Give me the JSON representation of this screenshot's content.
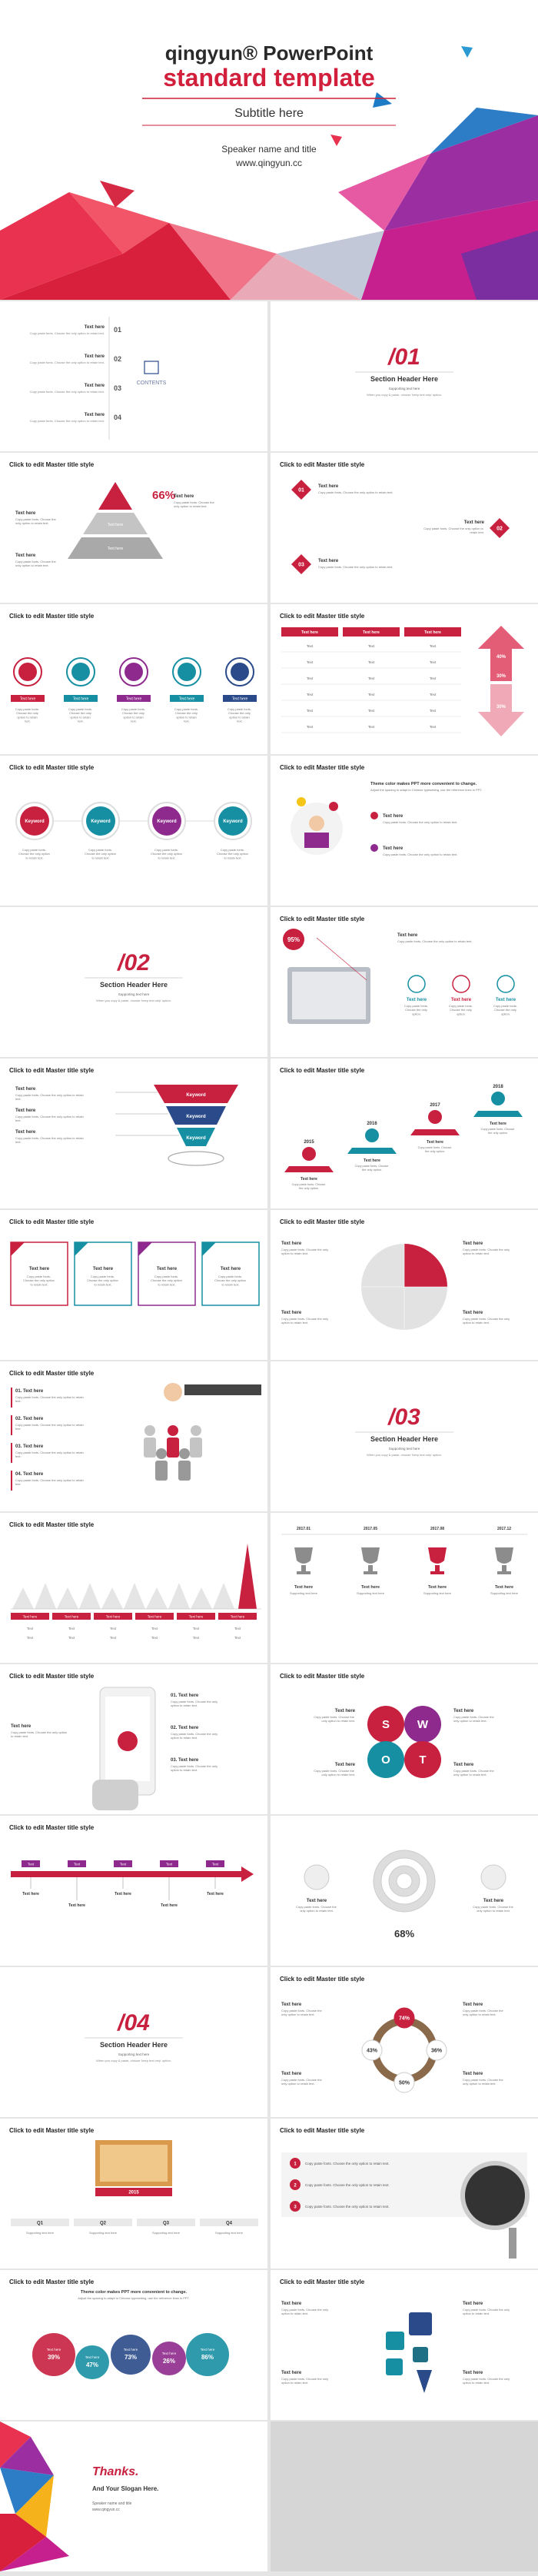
{
  "cover": {
    "title_line1": "qingyun® PowerPoint",
    "title_line2": "standard template",
    "subtitle": "Subtitle here",
    "speaker": "Speaker name and title",
    "website": "www.qingyun.cc"
  },
  "slides": [
    {
      "label": "CONTENTS",
      "items": [
        {
          "num": "01",
          "title": "Text here",
          "desc": "Copy paste fonts. Choose the only option to retain text."
        },
        {
          "num": "02",
          "title": "Text here",
          "desc": "Copy paste fonts. Choose the only option to retain text."
        },
        {
          "num": "03",
          "title": "Text here",
          "desc": "Copy paste fonts. Choose the only option to retain text."
        },
        {
          "num": "04",
          "title": "Text here",
          "desc": "Copy paste fonts. Choose the only option to retain text."
        }
      ]
    },
    {
      "number": "/01",
      "header": "Section Header Here",
      "sub": "Supporting text here",
      "desc": "When you copy & paste, choose 'keep text only' option."
    },
    {
      "title": "Click to edit Master title style",
      "percent": "66%",
      "levels": [
        "Text here",
        "Text here"
      ],
      "notes": [
        {
          "title": "Text here",
          "desc": "Copy paste fonts. Choose the only option to retain text."
        },
        {
          "title": "Text here",
          "desc": "Copy paste fonts. Choose the only option to retain text."
        },
        {
          "title": "Text here",
          "desc": "Copy paste fonts. Choose the only option to retain text."
        }
      ]
    },
    {
      "title": "Click to edit Master title style",
      "items": [
        {
          "num": "01",
          "title": "Text here",
          "desc": "Copy paste fonts. Choose the only option to retain text."
        },
        {
          "num": "02",
          "title": "Text here",
          "desc": "Copy paste fonts. Choose the only option to retain text."
        },
        {
          "num": "03",
          "title": "Text here",
          "desc": "Copy paste fonts. Choose the only option to retain text."
        }
      ]
    },
    {
      "title": "Click to edit Master title style",
      "items": [
        {
          "label": "Text here",
          "desc": "Copy paste fonts. Choose the only option to retain text."
        },
        {
          "label": "Text here",
          "desc": "Copy paste fonts. Choose the only option to retain text."
        },
        {
          "label": "Text here",
          "desc": "Copy paste fonts. Choose the only option to retain text."
        },
        {
          "label": "Text here",
          "desc": "Copy paste fonts. Choose the only option to retain text."
        },
        {
          "label": "Text here",
          "desc": "Copy paste fonts. Choose the only option to retain text."
        }
      ]
    },
    {
      "title": "Click to edit Master title style",
      "header": [
        "Text here",
        "Text here",
        "Text here"
      ],
      "rows": [
        [
          "Text",
          "Text",
          "Text"
        ],
        [
          "Text",
          "Text",
          "Text"
        ],
        [
          "Text",
          "Text",
          "Text"
        ],
        [
          "Text",
          "Text",
          "Text"
        ],
        [
          "Text",
          "Text",
          "Text"
        ],
        [
          "Text",
          "Text",
          "Text"
        ]
      ],
      "percents": [
        "40%",
        "30%",
        "30%"
      ]
    },
    {
      "title": "Click to edit Master title style",
      "items": [
        {
          "label": "Keyword",
          "desc": "Copy paste fonts. Choose the only option to retain text."
        },
        {
          "label": "Keyword",
          "desc": "Copy paste fonts. Choose the only option to retain text."
        },
        {
          "label": "Keyword",
          "desc": "Copy paste fonts. Choose the only option to retain text."
        },
        {
          "label": "Keyword",
          "desc": "Copy paste fonts. Choose the only option to retain text."
        }
      ]
    },
    {
      "title": "Click to edit Master title style",
      "heading": "Theme color makes PPT more convenient to change.",
      "sub": "Adjust the spacing to adapt to Chinese typesetting, use the reference lines in PPT.",
      "items": [
        {
          "title": "Text here",
          "desc": "Copy paste fonts. Choose the only option to retain text."
        },
        {
          "title": "Text here",
          "desc": "Copy paste fonts. Choose the only option to retain text."
        }
      ]
    },
    {
      "number": "/02",
      "header": "Section Header Here",
      "sub": "Supporting text here",
      "desc": "When you copy & paste, choose 'keep text only' option."
    },
    {
      "title": "Click to edit Master title style",
      "percent": "95%",
      "main": {
        "title": "Text here",
        "desc": "Copy paste fonts. Choose the only option to retain text."
      },
      "items": [
        {
          "title": "Text here",
          "desc": "Copy paste fonts. Choose the only option."
        },
        {
          "title": "Text here",
          "desc": "Copy paste fonts. Choose the only option."
        },
        {
          "title": "Text here",
          "desc": "Copy paste fonts. Choose the only option."
        }
      ]
    },
    {
      "title": "Click to edit Master title style",
      "items": [
        {
          "label": "Keyword",
          "title": "Text here",
          "desc": "Copy paste fonts. Choose the only option to retain text."
        },
        {
          "label": "Keyword",
          "title": "Text here",
          "desc": "Copy paste fonts. Choose the only option to retain text."
        },
        {
          "label": "Keyword",
          "title": "Text here",
          "desc": "Copy paste fonts. Choose the only option to retain text."
        }
      ]
    },
    {
      "title": "Click to edit Master title style",
      "items": [
        {
          "year": "2015",
          "title": "Text here",
          "desc": "Copy paste fonts. Choose the only option."
        },
        {
          "year": "2016",
          "title": "Text here",
          "desc": "Copy paste fonts. Choose the only option."
        },
        {
          "year": "2017",
          "title": "Text here",
          "desc": "Copy paste fonts. Choose the only option."
        },
        {
          "year": "2018",
          "title": "Text here",
          "desc": "Copy paste fonts. Choose the only option."
        }
      ]
    },
    {
      "title": "Click to edit Master title style",
      "items": [
        {
          "title": "Text here",
          "desc": "Copy paste fonts. Choose the only option to retain text."
        },
        {
          "title": "Text here",
          "desc": "Copy paste fonts. Choose the only option to retain text."
        },
        {
          "title": "Text here",
          "desc": "Copy paste fonts. Choose the only option to retain text."
        },
        {
          "title": "Text here",
          "desc": "Copy paste fonts. Choose the only option to retain text."
        }
      ]
    },
    {
      "title": "Click to edit Master title style",
      "items": [
        {
          "title": "Text here",
          "desc": "Copy paste fonts. Choose the only option to retain text."
        },
        {
          "title": "Text here",
          "desc": "Copy paste fonts. Choose the only option to retain text."
        },
        {
          "title": "Text here",
          "desc": "Copy paste fonts. Choose the only option to retain text."
        },
        {
          "title": "Text here",
          "desc": "Copy paste fonts. Choose the only option to retain text."
        }
      ]
    },
    {
      "title": "Click to edit Master title style",
      "items": [
        {
          "title": "01. Text here",
          "desc": "Copy paste fonts. Choose the only option to retain text."
        },
        {
          "title": "02. Text here",
          "desc": "Copy paste fonts. Choose the only option to retain text."
        },
        {
          "title": "03. Text here",
          "desc": "Copy paste fonts. Choose the only option to retain text."
        },
        {
          "title": "04. Text here",
          "desc": "Copy paste fonts. Choose the only option to retain text."
        }
      ]
    },
    {
      "number": "/03",
      "header": "Section Header Here",
      "sub": "Supporting text here",
      "desc": "When you copy & paste, choose 'keep text only' option."
    },
    {
      "title": "Click to edit Master title style",
      "labels": [
        "Text here",
        "Text here",
        "Text here",
        "Text here",
        "Text here",
        "Text here"
      ],
      "rows": [
        [
          "Text",
          "Text",
          "Text",
          "Text",
          "Text",
          "Text"
        ],
        [
          "Text",
          "Text",
          "Text",
          "Text",
          "Text",
          "Text"
        ]
      ]
    },
    {
      "items": [
        {
          "date": "2017.01",
          "title": "Text here",
          "desc": "Supporting text here"
        },
        {
          "date": "2017.05",
          "title": "Text here",
          "desc": "Supporting text here"
        },
        {
          "date": "2017.08",
          "title": "Text here",
          "desc": "Supporting text here"
        },
        {
          "date": "2017.12",
          "title": "Text here",
          "desc": "Supporting text here"
        }
      ]
    },
    {
      "title": "Click to edit Master title style",
      "main": {
        "title": "Text here",
        "desc": "Copy paste fonts. Choose the only option to retain text."
      },
      "items": [
        {
          "title": "01. Text here",
          "desc": "Copy paste fonts. Choose the only option to retain text."
        },
        {
          "title": "02. Text here",
          "desc": "Copy paste fonts. Choose the only option to retain text."
        },
        {
          "title": "03. Text here",
          "desc": "Copy paste fonts. Choose the only option to retain text."
        }
      ]
    },
    {
      "title": "Click to edit Master title style",
      "letters": [
        "S",
        "W",
        "O",
        "T"
      ],
      "items": [
        {
          "title": "Text here",
          "desc": "Copy paste fonts. Choose the only option to retain text."
        },
        {
          "title": "Text here",
          "desc": "Copy paste fonts. Choose the only option to retain text."
        },
        {
          "title": "Text here",
          "desc": "Copy paste fonts. Choose the only option to retain text."
        },
        {
          "title": "Text here",
          "desc": "Copy paste fonts. Choose the only option to retain text."
        }
      ]
    },
    {
      "title": "Click to edit Master title style",
      "items": [
        {
          "tag": "Text",
          "title": "Text here"
        },
        {
          "tag": "Text",
          "title": "Text here"
        },
        {
          "tag": "Text",
          "title": "Text here"
        },
        {
          "tag": "Text",
          "title": "Text here"
        },
        {
          "tag": "Text",
          "title": "Text here"
        }
      ]
    },
    {
      "percent": "68%",
      "items": [
        {
          "title": "Text here",
          "desc": "Copy paste fonts. Choose the only option to retain text."
        },
        {
          "title": "Text here",
          "desc": "Copy paste fonts. Choose the only option to retain text."
        }
      ]
    },
    {
      "number": "/04",
      "header": "Section Header Here",
      "sub": "Supporting text here",
      "desc": "When you copy & paste, choose 'keep text only' option."
    },
    {
      "title": "Click to edit Master title style",
      "percents": [
        "74%",
        "43%",
        "36%",
        "50%"
      ],
      "items": [
        {
          "title": "Text here",
          "desc": "Copy paste fonts. Choose the only option to retain text."
        },
        {
          "title": "Text here",
          "desc": "Copy paste fonts. Choose the only option to retain text."
        },
        {
          "title": "Text here",
          "desc": "Copy paste fonts. Choose the only option to retain text."
        },
        {
          "title": "Text here",
          "desc": "Copy paste fonts. Choose the only option to retain text."
        }
      ]
    },
    {
      "title": "Click to edit Master title style",
      "year": "2015",
      "quarters": [
        {
          "label": "Q1",
          "desc": "Supporting text here"
        },
        {
          "label": "Q2",
          "desc": "Supporting text here"
        },
        {
          "label": "Q3",
          "desc": "Supporting text here"
        },
        {
          "label": "Q4",
          "desc": "Supporting text here"
        }
      ]
    },
    {
      "title": "Click to edit Master title style",
      "items": [
        {
          "num": "1",
          "desc": "Copy paste fonts. Choose the only option to retain text."
        },
        {
          "num": "2",
          "desc": "Copy paste fonts. Choose the only option to retain text."
        },
        {
          "num": "3",
          "desc": "Copy paste fonts. Choose the only option to retain text."
        }
      ]
    },
    {
      "title": "Click to edit Master title style",
      "heading": "Theme color makes PPT more convenient to change.",
      "sub": "Adjust the spacing to adapt to Chinese typesetting, use the reference lines in PPT.",
      "circles": [
        {
          "label": "Text here",
          "percent": "39%"
        },
        {
          "label": "Text here",
          "percent": "47%"
        },
        {
          "label": "Text here",
          "percent": "73%"
        },
        {
          "label": "Text here",
          "percent": "26%"
        },
        {
          "label": "Text here",
          "percent": "86%"
        }
      ]
    },
    {
      "title": "Click to edit Master title style",
      "items": [
        {
          "title": "Text here",
          "desc": "Copy paste fonts. Choose the only option to retain text."
        },
        {
          "title": "Text here",
          "desc": "Copy paste fonts. Choose the only option to retain text."
        },
        {
          "title": "Text here",
          "desc": "Copy paste fonts. Choose the only option to retain text."
        },
        {
          "title": "Text here",
          "desc": "Copy paste fonts. Choose the only option to retain text."
        }
      ]
    },
    {
      "word": "Thanks.",
      "slogan": "And Your Slogan Here.",
      "speaker": "Speaker name and title",
      "website": "www.qingyun.cc"
    }
  ]
}
